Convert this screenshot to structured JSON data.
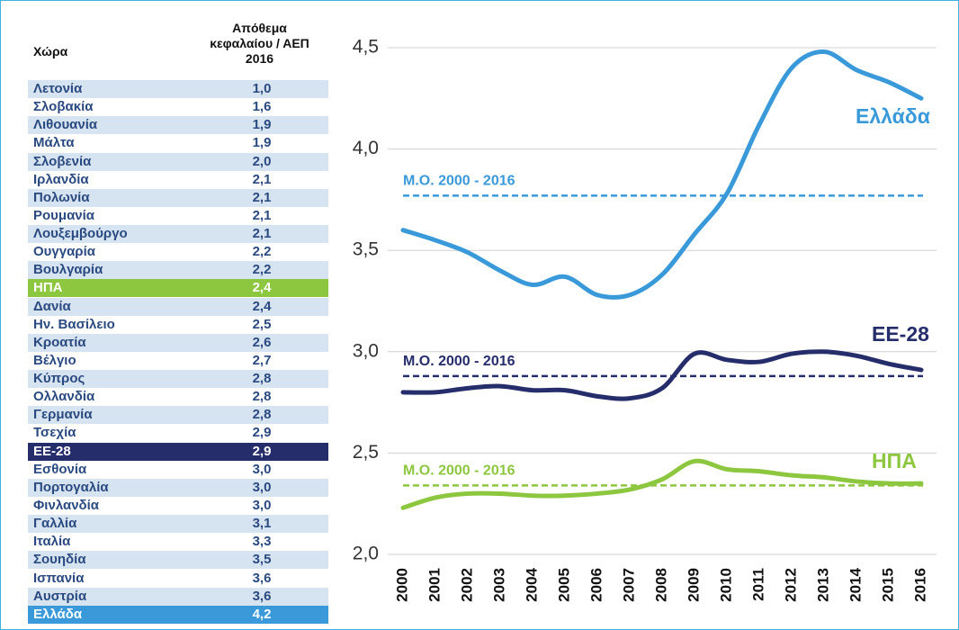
{
  "table": {
    "header": [
      "Χώρα",
      [
        "Απόθεμα",
        "κεφαλαίου / ΑΕΠ",
        "2016"
      ]
    ],
    "rows": [
      {
        "country": "Λετονία",
        "value": "1,0"
      },
      {
        "country": "Σλοβακία",
        "value": "1,6"
      },
      {
        "country": "Λιθουανία",
        "value": "1,9"
      },
      {
        "country": "Μάλτα",
        "value": "1,9"
      },
      {
        "country": "Σλοβενία",
        "value": "2,0"
      },
      {
        "country": "Ιρλανδία",
        "value": "2,1"
      },
      {
        "country": "Πολωνία",
        "value": "2,1"
      },
      {
        "country": "Ρουμανία",
        "value": "2,1"
      },
      {
        "country": "Λουξεμβούργο",
        "value": "2,1"
      },
      {
        "country": "Ουγγαρία",
        "value": "2,2"
      },
      {
        "country": "Βουλγαρία",
        "value": "2,2"
      },
      {
        "country": "ΗΠΑ",
        "value": "2,4",
        "color": "#8dc63f"
      },
      {
        "country": "Δανία",
        "value": "2,4"
      },
      {
        "country": "Ην. Βασίλειο",
        "value": "2,5"
      },
      {
        "country": "Κροατία",
        "value": "2,6"
      },
      {
        "country": "Βέλγιο",
        "value": "2,7"
      },
      {
        "country": "Κύπρος",
        "value": "2,8"
      },
      {
        "country": "Ολλανδία",
        "value": "2,8"
      },
      {
        "country": "Γερμανία",
        "value": "2,8"
      },
      {
        "country": "Τσεχία",
        "value": "2,9"
      },
      {
        "country": "ΕΕ-28",
        "value": "2,9",
        "color": "#262d6b"
      },
      {
        "country": "Εσθονία",
        "value": "3,0"
      },
      {
        "country": "Πορτογαλία",
        "value": "3,0"
      },
      {
        "country": "Φινλανδία",
        "value": "3,0"
      },
      {
        "country": "Γαλλία",
        "value": "3,1"
      },
      {
        "country": "Ιταλία",
        "value": "3,3"
      },
      {
        "country": "Σουηδία",
        "value": "3,5"
      },
      {
        "country": "Ισπανία",
        "value": "3,6"
      },
      {
        "country": "Αυστρία",
        "value": "3,6"
      },
      {
        "country": "Ελλάδα",
        "value": "4,2",
        "color": "#3a9ad9"
      }
    ]
  },
  "chart_data": {
    "type": "line",
    "categories": [
      "2000",
      "2001",
      "2002",
      "2003",
      "2004",
      "2005",
      "2006",
      "2007",
      "2008",
      "2009",
      "2010",
      "2011",
      "2012",
      "2013",
      "2014",
      "2015",
      "2016"
    ],
    "ylim": [
      2.0,
      4.5
    ],
    "yticks": [
      {
        "value": 2.0,
        "label": "2,0"
      },
      {
        "value": 2.5,
        "label": "2,5"
      },
      {
        "value": 3.0,
        "label": "3,0"
      },
      {
        "value": 3.5,
        "label": "3,5"
      },
      {
        "value": 4.0,
        "label": "4,0"
      },
      {
        "value": 4.5,
        "label": "4,5"
      }
    ],
    "grid": true,
    "mean_label": "Μ.Ο. 2000 - 2016",
    "series": [
      {
        "name": "Ελλάδα",
        "color": "#3a9ad9",
        "mean": 3.77,
        "values": [
          3.6,
          3.55,
          3.49,
          3.4,
          3.33,
          3.37,
          3.28,
          3.28,
          3.38,
          3.58,
          3.78,
          4.12,
          4.4,
          4.48,
          4.39,
          4.33,
          4.25
        ]
      },
      {
        "name": "ΕΕ-28",
        "color": "#262d6b",
        "mean": 2.88,
        "values": [
          2.8,
          2.8,
          2.82,
          2.83,
          2.81,
          2.81,
          2.78,
          2.77,
          2.82,
          2.99,
          2.96,
          2.95,
          2.99,
          3.0,
          2.98,
          2.94,
          2.91
        ]
      },
      {
        "name": "ΗΠΑ",
        "color": "#8dc63f",
        "mean": 2.34,
        "values": [
          2.23,
          2.28,
          2.3,
          2.3,
          2.29,
          2.29,
          2.3,
          2.32,
          2.37,
          2.46,
          2.42,
          2.41,
          2.39,
          2.38,
          2.36,
          2.35,
          2.35
        ]
      }
    ]
  }
}
